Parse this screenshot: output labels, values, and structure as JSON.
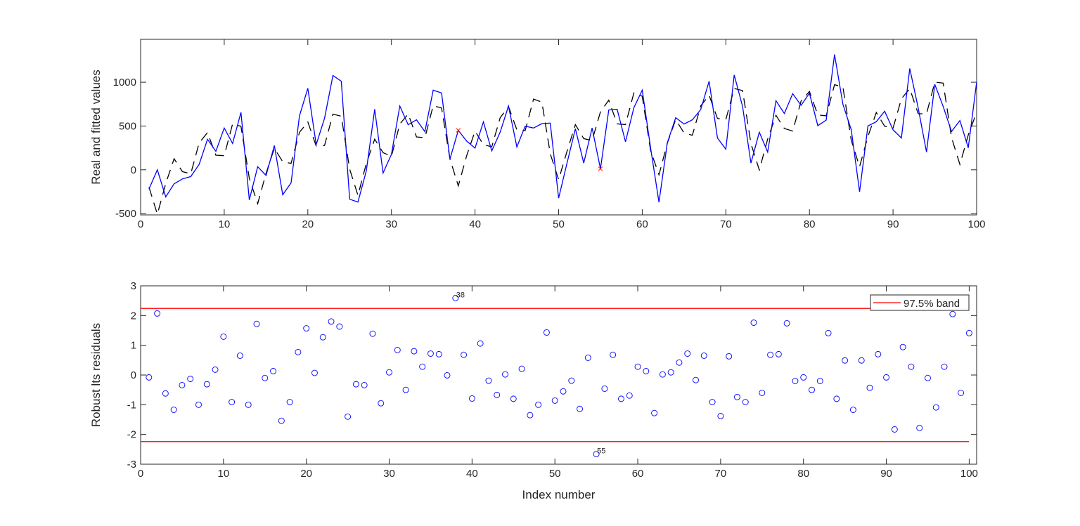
{
  "chart_data": [
    {
      "type": "line",
      "title": "",
      "xlabel": "",
      "ylabel": "Real and fitted values",
      "xlim": [
        0,
        100
      ],
      "ylim": [
        -515,
        1490
      ],
      "xticks": [
        0,
        10,
        20,
        30,
        40,
        50,
        60,
        70,
        80,
        90,
        100
      ],
      "yticks": [
        -500,
        0,
        500,
        1000
      ],
      "grid": false,
      "colors": {
        "real": "#0000ff",
        "fitted": "#000000",
        "outlier_marker": "#ff0000"
      },
      "outliers": [
        38,
        55
      ],
      "series": [
        {
          "name": "Real values",
          "style": "solid",
          "values": [
            -219,
            0,
            -309,
            -160,
            -104,
            -77,
            61,
            349,
            211,
            477,
            301,
            656,
            -344,
            35,
            -64,
            277,
            -285,
            -149,
            616,
            931,
            288,
            589,
            1077,
            1011,
            -336,
            -368,
            -11,
            691,
            -37,
            176,
            728,
            515,
            571,
            435,
            909,
            877,
            123,
            451,
            328,
            248,
            547,
            216,
            429,
            728,
            261,
            499,
            477,
            528,
            533,
            -323,
            75,
            469,
            77,
            477,
            11,
            683,
            691,
            320,
            709,
            909,
            250,
            -371,
            309,
            595,
            523,
            571,
            688,
            1011,
            363,
            235,
            1083,
            723,
            77,
            429,
            203,
            789,
            643,
            869,
            736,
            875,
            504,
            568,
            1317,
            749,
            456,
            -251,
            501,
            549,
            669,
            456,
            363,
            1157,
            709,
            203,
            976,
            723,
            437,
            563,
            251,
            1003
          ]
        },
        {
          "name": "Fitted values",
          "style": "dashed",
          "scale": 245
        }
      ]
    },
    {
      "type": "scatter",
      "title": "",
      "xlabel": "Index number",
      "ylabel": "Robust lts residuals",
      "xlim": [
        0,
        100.9
      ],
      "ylim": [
        -3,
        3
      ],
      "xticks": [
        0,
        10,
        20,
        30,
        40,
        50,
        60,
        70,
        80,
        90,
        100
      ],
      "yticks": [
        -3,
        -2,
        -1,
        0,
        1,
        2,
        3
      ],
      "grid": false,
      "legend": {
        "entries": [
          "97.5% band"
        ],
        "placement": "top-right"
      },
      "band": 2.24,
      "colors": {
        "points": "#0000ff",
        "band": "#ff0000"
      },
      "labels": [
        {
          "index": 38,
          "text": "38"
        },
        {
          "index": 55,
          "text": "55"
        }
      ],
      "values": [
        -0.08,
        2.07,
        -0.62,
        -1.17,
        -0.34,
        -0.13,
        -1.0,
        -0.31,
        0.18,
        1.29,
        -0.91,
        0.65,
        -1.0,
        1.72,
        -0.1,
        0.13,
        -1.54,
        -0.91,
        0.77,
        1.57,
        0.07,
        1.27,
        1.8,
        1.63,
        -1.4,
        -0.31,
        -0.34,
        1.39,
        -0.95,
        0.09,
        0.84,
        -0.5,
        0.8,
        0.28,
        0.72,
        0.7,
        -0.01,
        2.59,
        0.68,
        -0.79,
        1.06,
        -0.19,
        -0.67,
        0.02,
        -0.8,
        0.21,
        -1.35,
        -1.0,
        1.43,
        -0.86,
        -0.55,
        -0.19,
        -1.14,
        0.58,
        -2.66,
        -0.46,
        0.68,
        -0.8,
        -0.69,
        0.28,
        0.13,
        -1.28,
        0.02,
        0.09,
        0.42,
        0.72,
        -0.17,
        0.65,
        -0.91,
        -1.38,
        0.63,
        -0.74,
        -0.91,
        1.76,
        -0.6,
        0.68,
        0.7,
        1.74,
        -0.2,
        -0.08,
        -0.5,
        -0.2,
        1.41,
        -0.8,
        0.49,
        -1.17,
        0.49,
        -0.43,
        0.7,
        -0.08,
        -1.83,
        0.94,
        0.28,
        -1.78,
        -0.1,
        -1.09,
        0.28,
        2.05,
        -0.6,
        1.41
      ]
    }
  ]
}
